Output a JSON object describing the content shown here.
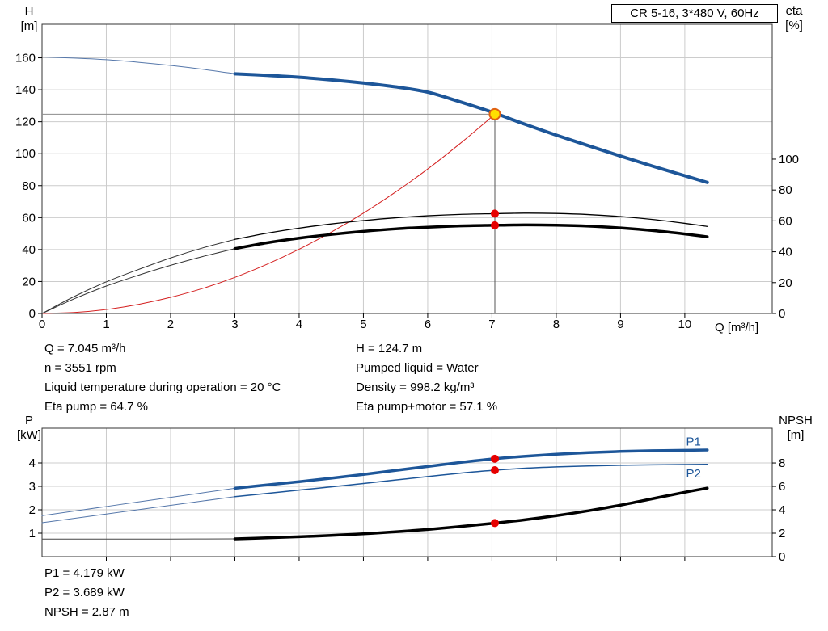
{
  "colors": {
    "curve_blue": "#1d5699",
    "ext_blue": "#5577aa",
    "curve_black": "#000000",
    "ext_black": "#333333",
    "system_red": "#d42020",
    "marker_red": "#e60000",
    "duty_fill": "#ffe000",
    "duty_stroke": "#e06010",
    "grid": "#cccccc",
    "border": "#333333",
    "ref_gray": "#8c8c8c"
  },
  "info_top": {
    "left": [
      "Q = 7.045 m³/h",
      "n = 3551 rpm",
      "Liquid temperature during operation = 20 °C",
      "Eta pump = 64.7 %"
    ],
    "right": [
      "H = 124.7 m",
      "Pumped liquid = Water",
      "Density = 998.2 kg/m³",
      "Eta pump+motor = 57.1 %"
    ]
  },
  "info_bottom": [
    "P1 = 4.179 kW",
    "P2 = 3.689 kW",
    "NPSH = 2.87 m"
  ],
  "chart_data": [
    {
      "type": "line",
      "title": "CR 5-16, 3*480 V, 60Hz",
      "x": {
        "min": 0,
        "max": 11.36,
        "ticks": [
          0,
          1,
          2,
          3,
          4,
          5,
          6,
          7,
          8,
          9,
          10
        ],
        "show_labels": true
      },
      "x_title": "Q [m³/h]",
      "yl": {
        "min": 0,
        "max": 181,
        "ticks": [
          0,
          20,
          40,
          60,
          80,
          100,
          120,
          140,
          160
        ]
      },
      "yl_title": [
        "H",
        "[m]"
      ],
      "yr": {
        "min": 0,
        "max": 187.4,
        "ticks": [
          0,
          20,
          40,
          60,
          80,
          100
        ]
      },
      "yr_title": [
        "eta",
        "[%]"
      ],
      "series": [
        {
          "name": "system-curve",
          "axis": "yl",
          "color": "#d42020",
          "width": 1,
          "x": [
            0,
            0.5,
            1,
            1.5,
            2,
            2.5,
            3,
            3.5,
            4,
            4.5,
            5,
            5.5,
            6,
            6.5,
            7,
            7.045
          ],
          "y": [
            0,
            0.6,
            2.5,
            5.7,
            10.1,
            15.7,
            22.6,
            30.8,
            40.2,
            50.9,
            62.8,
            76,
            90.4,
            106.2,
            123.1,
            124.7
          ]
        },
        {
          "name": "eta-pump-ext-curve",
          "axis": "yr",
          "color": "#333333",
          "width": 1,
          "x": [
            0,
            0.5,
            1,
            1.5,
            2,
            2.5,
            3
          ],
          "y": [
            0,
            11,
            20.5,
            28.5,
            36,
            42.5,
            48
          ]
        },
        {
          "name": "eta-pump-motor-ext-curve",
          "axis": "yr",
          "color": "#333333",
          "width": 1,
          "x": [
            0,
            0.5,
            1,
            1.5,
            2,
            2.5,
            3
          ],
          "y": [
            0,
            9.5,
            17.8,
            24.8,
            31.2,
            36.9,
            42
          ]
        },
        {
          "name": "eta-pump-curve",
          "axis": "yr",
          "color": "#000000",
          "width": 1.3,
          "x": [
            3,
            3.5,
            4,
            4.5,
            5,
            5.5,
            6,
            6.5,
            7,
            7.5,
            8,
            8.5,
            9,
            9.5,
            10,
            10.35
          ],
          "y": [
            48,
            52,
            55.3,
            58,
            60.2,
            62,
            63.3,
            64.2,
            64.65,
            65,
            64.8,
            64.1,
            62.8,
            60.9,
            58.4,
            56.4
          ]
        },
        {
          "name": "eta-pump-motor-curve",
          "axis": "yr",
          "color": "#000000",
          "width": 3.5,
          "x": [
            3,
            3.5,
            4,
            4.5,
            5,
            5.5,
            6,
            6.5,
            7,
            7.5,
            8,
            8.5,
            9,
            9.5,
            10,
            10.35
          ],
          "y": [
            42,
            45.8,
            48.8,
            51.2,
            53.2,
            54.8,
            55.9,
            56.7,
            57.1,
            57.4,
            57.2,
            56.6,
            55.4,
            53.7,
            51.5,
            49.7
          ]
        },
        {
          "name": "pump-curve-ext",
          "axis": "yl",
          "color": "#5577aa",
          "width": 1,
          "x": [
            0,
            0.5,
            1,
            1.5,
            2,
            2.5,
            3
          ],
          "y": [
            160.5,
            159.8,
            158.8,
            157.2,
            155.2,
            152.8,
            150
          ]
        },
        {
          "name": "pump-curve",
          "axis": "yl",
          "color": "#1d5699",
          "width": 4,
          "x": [
            3,
            3.5,
            4,
            4.5,
            5,
            5.5,
            6,
            6.5,
            7,
            7.5,
            8,
            8.5,
            9,
            9.5,
            10,
            10.35
          ],
          "y": [
            150,
            149,
            147.8,
            146.2,
            144.2,
            141.8,
            138.5,
            132.5,
            126,
            118.6,
            111.6,
            105,
            98.5,
            92.2,
            86.2,
            82
          ]
        }
      ],
      "ref_lines": [
        {
          "name": "head-ref-line",
          "orient": "h",
          "axis": "yl",
          "at": 124.7,
          "from": 0,
          "to": 7.045,
          "color": "#8c8c8c",
          "width": 1
        },
        {
          "name": "flow-ref-line",
          "orient": "v",
          "axis": "yl",
          "at": 7.045,
          "from": 0,
          "to": 124.7,
          "color": "#555555",
          "width": 1
        }
      ],
      "markers": [
        {
          "name": "eta-pump-point",
          "axis": "yr",
          "x": 7.045,
          "y": 64.7,
          "r": 5,
          "fill": "#e60000"
        },
        {
          "name": "eta-pump-motor-point",
          "axis": "yr",
          "x": 7.045,
          "y": 57.1,
          "r": 5,
          "fill": "#e60000"
        },
        {
          "name": "duty-point",
          "axis": "yl",
          "x": 7.045,
          "y": 124.7,
          "r": 6.5,
          "fill": "#ffe000",
          "stroke": "#e06010",
          "sw": 2
        }
      ],
      "annotations": []
    },
    {
      "type": "line",
      "title": "",
      "x": {
        "min": 0,
        "max": 11.36,
        "ticks": [
          1,
          2,
          3,
          4,
          5,
          6,
          7,
          8,
          9,
          10
        ],
        "show_labels": false
      },
      "x_title": "",
      "yl": {
        "min": 0,
        "max": 5.483,
        "ticks": [
          1,
          2,
          3,
          4
        ]
      },
      "yl_title": [
        "P",
        "[kW]"
      ],
      "yr": {
        "min": 0,
        "max": 10.97,
        "ticks": [
          0,
          2,
          4,
          6,
          8
        ]
      },
      "yr_title": [
        "NPSH",
        "[m]"
      ],
      "series": [
        {
          "name": "p1-ext-curve",
          "axis": "yl",
          "color": "#5577aa",
          "width": 1,
          "x": [
            0,
            1,
            2,
            3
          ],
          "y": [
            1.75,
            2.14,
            2.53,
            2.92
          ]
        },
        {
          "name": "p2-ext-curve",
          "axis": "yl",
          "color": "#5577aa",
          "width": 1,
          "x": [
            0,
            1,
            2,
            3
          ],
          "y": [
            1.45,
            1.82,
            2.19,
            2.56
          ]
        },
        {
          "name": "npsh-ext-curve",
          "axis": "yr",
          "color": "#444444",
          "width": 1,
          "x": [
            0,
            1,
            2,
            3
          ],
          "y": [
            1.5,
            1.5,
            1.5,
            1.52
          ]
        },
        {
          "name": "p1-curve",
          "axis": "yl",
          "color": "#1d5699",
          "width": 3.5,
          "x": [
            3,
            3.5,
            4,
            4.5,
            5,
            5.5,
            6,
            6.5,
            7,
            7.5,
            8,
            8.5,
            9,
            9.5,
            10,
            10.35
          ],
          "y": [
            2.92,
            3.06,
            3.2,
            3.35,
            3.51,
            3.68,
            3.85,
            4.02,
            4.17,
            4.28,
            4.37,
            4.44,
            4.49,
            4.52,
            4.54,
            4.55
          ]
        },
        {
          "name": "p2-curve",
          "axis": "yl",
          "color": "#1d5699",
          "width": 1.5,
          "x": [
            3,
            3.5,
            4,
            4.5,
            5,
            5.5,
            6,
            6.5,
            7,
            7.5,
            8,
            8.5,
            9,
            9.5,
            10,
            10.35
          ],
          "y": [
            2.56,
            2.7,
            2.84,
            2.98,
            3.12,
            3.27,
            3.42,
            3.56,
            3.68,
            3.77,
            3.83,
            3.87,
            3.9,
            3.92,
            3.93,
            3.94
          ]
        },
        {
          "name": "npsh-curve",
          "axis": "yr",
          "color": "#000000",
          "width": 3.5,
          "x": [
            3,
            3.5,
            4,
            4.5,
            5,
            5.5,
            6,
            6.5,
            7,
            7.5,
            8,
            8.5,
            9,
            9.5,
            10,
            10.35
          ],
          "y": [
            1.52,
            1.6,
            1.7,
            1.81,
            1.95,
            2.12,
            2.32,
            2.57,
            2.84,
            3.14,
            3.5,
            3.92,
            4.4,
            4.95,
            5.5,
            5.85
          ]
        }
      ],
      "ref_lines": [],
      "markers": [
        {
          "name": "p1-point",
          "axis": "yl",
          "x": 7.045,
          "y": 4.179,
          "r": 5,
          "fill": "#e60000"
        },
        {
          "name": "p2-point",
          "axis": "yl",
          "x": 7.045,
          "y": 3.689,
          "r": 5,
          "fill": "#e60000"
        },
        {
          "name": "npsh-point",
          "axis": "yr",
          "x": 7.045,
          "y": 2.87,
          "r": 5,
          "fill": "#e60000"
        }
      ],
      "annotations": [
        {
          "name": "p1-label",
          "text": "P1",
          "axis": "yl",
          "x": 10.02,
          "y": 4.75,
          "color": "#1d5699",
          "size": 15
        },
        {
          "name": "p2-label",
          "text": "P2",
          "axis": "yl",
          "x": 10.02,
          "y": 3.38,
          "color": "#1d5699",
          "size": 15
        }
      ]
    }
  ]
}
